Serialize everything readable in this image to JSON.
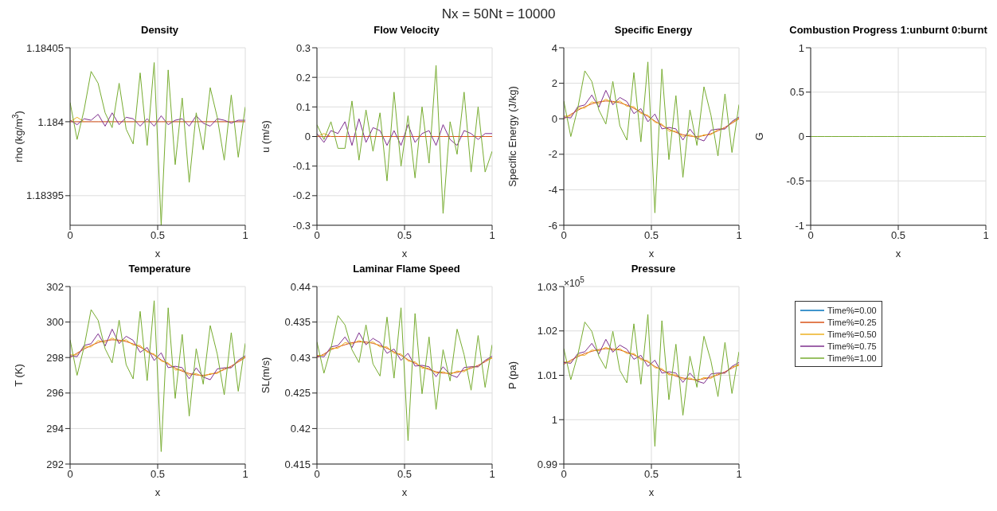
{
  "chart_data": [
    {
      "type": "line",
      "title": "Density",
      "xlabel": "x",
      "ylabel": "rho (kg/m$^{3}$)",
      "annotations": [
        "Nx = 50Nt = 10000"
      ],
      "x": [
        0,
        0.04,
        0.08,
        0.12,
        0.16,
        0.2,
        0.24,
        0.28,
        0.32,
        0.36,
        0.4,
        0.44,
        0.48,
        0.52,
        0.56,
        0.6,
        0.64,
        0.68,
        0.72,
        0.76,
        0.8,
        0.84,
        0.88,
        0.92,
        0.96,
        1
      ],
      "xlim": [
        0,
        1
      ],
      "xticks": [
        0,
        0.5,
        1
      ],
      "ylim": [
        1.18393,
        1.18405
      ],
      "yticks": [
        1.18395,
        1.184,
        1.18405
      ],
      "grid": true,
      "marker": "none",
      "line_style": "solid",
      "series": [
        {
          "color": "#0072bd",
          "values": [
            null,
            null,
            null,
            null,
            null,
            null,
            null,
            null,
            null,
            null,
            null,
            null,
            null,
            null,
            null,
            null,
            null,
            null,
            null,
            null,
            null,
            null,
            null,
            null,
            null,
            null
          ]
        },
        {
          "color": "#d95319",
          "values": [
            1.184,
            1.184,
            1.184,
            1.184,
            1.184,
            1.184,
            1.184,
            1.184,
            1.184,
            1.184,
            1.184,
            1.184,
            1.184,
            1.184,
            1.184,
            1.184,
            1.184,
            1.184,
            1.184,
            1.184,
            1.184,
            1.184,
            1.184,
            1.184,
            1.184,
            1.184
          ]
        },
        {
          "color": "#edb120",
          "values": [
            1.184,
            1.184003,
            1.184,
            null,
            null,
            null,
            null,
            null,
            null,
            null,
            null,
            null,
            null,
            null,
            null,
            null,
            null,
            null,
            null,
            null,
            null,
            null,
            null,
            null,
            null,
            null
          ]
        },
        {
          "color": "#7e2f8e",
          "values": [
            1.184001,
            1.183998,
            1.184002,
            1.184001,
            1.184005,
            1.183997,
            1.184006,
            1.183998,
            1.184003,
            1.184002,
            1.183997,
            1.184002,
            1.183997,
            1.184004,
            1.183998,
            1.184001,
            1.184002,
            1.183997,
            1.184004,
            1.183999,
            1.183997,
            1.184002,
            1.184001,
            1.183999,
            1.184001,
            1.184001
          ]
        },
        {
          "color": "#77ac30",
          "values": [
            1.184013,
            1.183988,
            1.184008,
            1.184034,
            1.184026,
            1.184006,
            1.183996,
            1.184026,
            1.183995,
            1.183985,
            1.184033,
            1.183984,
            1.18404,
            1.18393,
            1.184035,
            1.183971,
            1.184016,
            1.183959,
            1.184006,
            1.183981,
            1.184023,
            1.184003,
            1.183974,
            1.184018,
            1.183976,
            1.18401
          ]
        }
      ]
    },
    {
      "type": "line",
      "title": "Flow Velocity",
      "xlabel": "x",
      "ylabel": "u (m/s)",
      "x": [
        0,
        0.04,
        0.08,
        0.12,
        0.16,
        0.2,
        0.24,
        0.28,
        0.32,
        0.36,
        0.4,
        0.44,
        0.48,
        0.52,
        0.56,
        0.6,
        0.64,
        0.68,
        0.72,
        0.76,
        0.8,
        0.84,
        0.88,
        0.92,
        0.96,
        1
      ],
      "xlim": [
        0,
        1
      ],
      "xticks": [
        0,
        0.5,
        1
      ],
      "ylim": [
        -0.3,
        0.3
      ],
      "yticks": [
        -0.3,
        -0.2,
        -0.1,
        0,
        0.1,
        0.2,
        0.3
      ],
      "grid": true,
      "marker": "none",
      "line_style": "solid",
      "series": [
        {
          "color": "#0072bd",
          "values": [
            null,
            null,
            null,
            null,
            null,
            null,
            null,
            null,
            null,
            null,
            null,
            null,
            null,
            null,
            null,
            null,
            null,
            null,
            null,
            null,
            null,
            null,
            null,
            null,
            null,
            null
          ]
        },
        {
          "color": "#d95319",
          "values": [
            0,
            0,
            0,
            0,
            0,
            0,
            0,
            0,
            0,
            0,
            0,
            0,
            0,
            0,
            0,
            0,
            0,
            0,
            0,
            0,
            0,
            0,
            0,
            0,
            0,
            0
          ]
        },
        {
          "color": "#edb120",
          "values": [
            0,
            0.01,
            0,
            null,
            null,
            null,
            null,
            null,
            null,
            null,
            null,
            null,
            null,
            null,
            null,
            null,
            null,
            null,
            null,
            null,
            null,
            null,
            null,
            null,
            null,
            null
          ]
        },
        {
          "color": "#7e2f8e",
          "values": [
            0.01,
            -0.02,
            0.02,
            0.01,
            0.05,
            -0.03,
            0.06,
            -0.02,
            0.03,
            0.02,
            -0.03,
            0.02,
            -0.03,
            0.04,
            -0.02,
            0.01,
            0.02,
            -0.03,
            0.04,
            -0.01,
            -0.03,
            0.02,
            0.01,
            -0.01,
            0.01,
            0.01
          ]
        },
        {
          "color": "#77ac30",
          "values": [
            0.04,
            -0.01,
            0.05,
            -0.04,
            -0.04,
            0.12,
            -0.08,
            0.09,
            -0.05,
            0.08,
            -0.15,
            0.15,
            -0.1,
            0.07,
            -0.14,
            0.1,
            -0.09,
            0.24,
            -0.26,
            0.05,
            -0.06,
            0.15,
            -0.12,
            0.1,
            -0.12,
            -0.05
          ]
        }
      ]
    },
    {
      "type": "line",
      "title": "Specific Energy",
      "xlabel": "x",
      "ylabel": "Specific Energy (J/kg)",
      "x": [
        0,
        0.04,
        0.08,
        0.12,
        0.16,
        0.2,
        0.24,
        0.28,
        0.32,
        0.36,
        0.4,
        0.44,
        0.48,
        0.52,
        0.56,
        0.6,
        0.64,
        0.68,
        0.72,
        0.76,
        0.8,
        0.84,
        0.88,
        0.92,
        0.96,
        1
      ],
      "xlim": [
        0,
        1
      ],
      "xticks": [
        0,
        0.5,
        1
      ],
      "ylim": [
        -6,
        4
      ],
      "yticks": [
        -6,
        -4,
        -2,
        0,
        2,
        4
      ],
      "grid": true,
      "marker": "none",
      "line_style": "solid",
      "series": [
        {
          "color": "#0072bd",
          "values": [
            null,
            null,
            null,
            null,
            null,
            null,
            null,
            null,
            null,
            null,
            null,
            null,
            null,
            null,
            null,
            null,
            null,
            null,
            null,
            null,
            null,
            null,
            null,
            null,
            null,
            null
          ]
        },
        {
          "color": "#d95319",
          "values": [
            0,
            0.25,
            0.48,
            0.68,
            0.84,
            0.95,
            1,
            0.98,
            0.9,
            0.77,
            0.59,
            0.37,
            0.13,
            -0.13,
            -0.37,
            -0.59,
            -0.77,
            -0.9,
            -0.98,
            -1,
            -0.95,
            -0.84,
            -0.68,
            -0.48,
            -0.25,
            0
          ]
        },
        {
          "color": "#edb120",
          "values": [
            0.15,
            0.15,
            0.6,
            0.6,
            0.95,
            0.85,
            1.1,
            0.9,
            1,
            0.7,
            0.68,
            0.3,
            0.2,
            -0.2,
            -0.3,
            -0.7,
            -0.7,
            -1,
            -0.9,
            -1.1,
            -0.9,
            -0.9,
            -0.6,
            -0.55,
            -0.2,
            0.05
          ]
        },
        {
          "color": "#7e2f8e",
          "values": [
            0.1,
            0.05,
            0.68,
            0.78,
            1.34,
            0.65,
            1.6,
            0.78,
            1.2,
            0.97,
            0.29,
            0.57,
            -0.17,
            0.27,
            -0.57,
            -0.49,
            -0.57,
            -1.2,
            -0.58,
            -1.1,
            -1.25,
            -0.64,
            -0.58,
            -0.58,
            -0.15,
            0.1
          ]
        },
        {
          "color": "#77ac30",
          "values": [
            1,
            -1,
            0.6,
            2.7,
            2.1,
            0.5,
            -0.3,
            2.1,
            -0.4,
            -1.2,
            2.6,
            -1.3,
            3.2,
            -5.3,
            2.8,
            -2.3,
            1.3,
            -3.3,
            0.5,
            -1.5,
            1.8,
            0.2,
            -2.1,
            1.4,
            -1.9,
            0.8
          ]
        }
      ]
    },
    {
      "type": "line",
      "title": "Combustion Progress 1:unburnt 0:burnt",
      "xlabel": "x",
      "ylabel": "G",
      "x": [
        0,
        0.04,
        0.08,
        0.12,
        0.16,
        0.2,
        0.24,
        0.28,
        0.32,
        0.36,
        0.4,
        0.44,
        0.48,
        0.52,
        0.56,
        0.6,
        0.64,
        0.68,
        0.72,
        0.76,
        0.8,
        0.84,
        0.88,
        0.92,
        0.96,
        1
      ],
      "xlim": [
        0,
        1
      ],
      "xticks": [
        0,
        0.5,
        1
      ],
      "ylim": [
        -1,
        1
      ],
      "yticks": [
        -1,
        -0.5,
        0,
        0.5,
        1
      ],
      "grid": true,
      "marker": "none",
      "line_style": "solid",
      "series": [
        {
          "color": "#0072bd",
          "values": [
            null,
            null,
            null,
            null,
            null,
            null,
            null,
            null,
            null,
            null,
            null,
            null,
            null,
            null,
            null,
            null,
            null,
            null,
            null,
            null,
            null,
            null,
            null,
            null,
            null,
            null
          ]
        },
        {
          "color": "#d95319",
          "values": [
            null,
            null,
            null,
            null,
            null,
            null,
            null,
            null,
            null,
            null,
            null,
            null,
            null,
            null,
            null,
            null,
            null,
            null,
            null,
            null,
            null,
            null,
            null,
            null,
            null,
            null
          ]
        },
        {
          "color": "#edb120",
          "values": [
            null,
            null,
            null,
            null,
            null,
            null,
            null,
            null,
            null,
            null,
            null,
            null,
            null,
            null,
            null,
            null,
            null,
            null,
            null,
            null,
            null,
            null,
            null,
            null,
            null,
            null
          ]
        },
        {
          "color": "#7e2f8e",
          "values": [
            null,
            null,
            null,
            null,
            null,
            null,
            null,
            null,
            null,
            null,
            null,
            null,
            null,
            null,
            null,
            null,
            null,
            null,
            null,
            null,
            null,
            null,
            null,
            null,
            null,
            null
          ]
        },
        {
          "color": "#77ac30",
          "values": [
            0,
            0,
            0,
            0,
            0,
            0,
            0,
            0,
            0,
            0,
            0,
            0,
            0,
            0,
            0,
            0,
            0,
            0,
            0,
            0,
            0,
            0,
            0,
            0,
            0,
            0
          ]
        }
      ]
    },
    {
      "type": "line",
      "title": "Temperature",
      "xlabel": "x",
      "ylabel": "T (K)",
      "x": [
        0,
        0.04,
        0.08,
        0.12,
        0.16,
        0.2,
        0.24,
        0.28,
        0.32,
        0.36,
        0.4,
        0.44,
        0.48,
        0.52,
        0.56,
        0.6,
        0.64,
        0.68,
        0.72,
        0.76,
        0.8,
        0.84,
        0.88,
        0.92,
        0.96,
        1
      ],
      "xlim": [
        0,
        1
      ],
      "xticks": [
        0,
        0.5,
        1
      ],
      "ylim": [
        292,
        302
      ],
      "yticks": [
        292,
        294,
        296,
        298,
        300,
        302
      ],
      "grid": true,
      "marker": "none",
      "line_style": "solid",
      "series": [
        {
          "color": "#0072bd",
          "values": [
            null,
            null,
            null,
            null,
            null,
            null,
            null,
            null,
            null,
            null,
            null,
            null,
            null,
            null,
            null,
            null,
            null,
            null,
            null,
            null,
            null,
            null,
            null,
            null,
            null,
            null
          ]
        },
        {
          "color": "#d95319",
          "values": [
            298,
            298.25,
            298.48,
            298.68,
            298.84,
            298.95,
            299,
            298.98,
            298.9,
            298.77,
            298.59,
            298.37,
            298.13,
            297.87,
            297.63,
            297.41,
            297.23,
            297.1,
            297.02,
            297,
            297.05,
            297.16,
            297.32,
            297.52,
            297.75,
            298
          ]
        },
        {
          "color": "#edb120",
          "values": [
            298.15,
            298.15,
            298.6,
            298.6,
            298.95,
            298.85,
            299.1,
            298.9,
            299,
            298.7,
            298.68,
            298.3,
            298.2,
            297.8,
            297.7,
            297.3,
            297.3,
            297,
            297.1,
            296.9,
            297.1,
            297.1,
            297.4,
            297.45,
            297.8,
            298.05
          ]
        },
        {
          "color": "#7e2f8e",
          "values": [
            298.1,
            298.05,
            298.68,
            298.78,
            299.34,
            298.65,
            299.6,
            298.78,
            299.2,
            298.97,
            298.29,
            298.57,
            297.83,
            298.27,
            297.43,
            297.51,
            297.43,
            296.8,
            297.42,
            296.9,
            296.75,
            297.36,
            297.42,
            297.42,
            297.85,
            298.1
          ]
        },
        {
          "color": "#77ac30",
          "values": [
            299,
            297,
            298.6,
            300.7,
            300.1,
            298.5,
            297.7,
            300.1,
            297.6,
            296.8,
            300.6,
            296.7,
            301.2,
            292.7,
            300.8,
            295.7,
            299.3,
            294.7,
            298.5,
            296.5,
            299.8,
            298.2,
            295.9,
            299.4,
            296.1,
            298.8
          ]
        }
      ]
    },
    {
      "type": "line",
      "title": "Laminar Flame Speed",
      "xlabel": "x",
      "ylabel": "SL(m/s)",
      "x": [
        0,
        0.04,
        0.08,
        0.12,
        0.16,
        0.2,
        0.24,
        0.28,
        0.32,
        0.36,
        0.4,
        0.44,
        0.48,
        0.52,
        0.56,
        0.6,
        0.64,
        0.68,
        0.72,
        0.76,
        0.8,
        0.84,
        0.88,
        0.92,
        0.96,
        1
      ],
      "xlim": [
        0,
        1
      ],
      "xticks": [
        0,
        0.5,
        1
      ],
      "ylim": [
        0.415,
        0.44
      ],
      "yticks": [
        0.415,
        0.42,
        0.425,
        0.43,
        0.435,
        0.44
      ],
      "grid": true,
      "marker": "none",
      "line_style": "solid",
      "series": [
        {
          "color": "#0072bd",
          "values": [
            null,
            null,
            null,
            null,
            null,
            null,
            null,
            null,
            null,
            null,
            null,
            null,
            null,
            null,
            null,
            null,
            null,
            null,
            null,
            null,
            null,
            null,
            null,
            null,
            null,
            null
          ]
        },
        {
          "color": "#d95319",
          "values": [
            0.43,
            0.4305,
            0.4311,
            0.4315,
            0.4318,
            0.4321,
            0.4322,
            0.4322,
            0.432,
            0.4317,
            0.4313,
            0.4308,
            0.4303,
            0.4297,
            0.4292,
            0.4287,
            0.4283,
            0.428,
            0.4278,
            0.4278,
            0.4279,
            0.4282,
            0.4285,
            0.4289,
            0.4294,
            0.43
          ]
        },
        {
          "color": "#edb120",
          "values": [
            0.4303,
            0.4303,
            0.4313,
            0.4313,
            0.4321,
            0.4319,
            0.4324,
            0.432,
            0.4322,
            0.4315,
            0.4315,
            0.4306,
            0.4305,
            0.4295,
            0.4294,
            0.4285,
            0.4285,
            0.4278,
            0.428,
            0.4276,
            0.4281,
            0.428,
            0.4287,
            0.4287,
            0.4296,
            0.4299
          ]
        },
        {
          "color": "#7e2f8e",
          "values": [
            0.4302,
            0.4301,
            0.4315,
            0.4317,
            0.4329,
            0.4314,
            0.4335,
            0.4318,
            0.4327,
            0.4321,
            0.4306,
            0.4312,
            0.4296,
            0.4306,
            0.4288,
            0.4289,
            0.4287,
            0.4273,
            0.4287,
            0.4276,
            0.4272,
            0.4286,
            0.4287,
            0.4287,
            0.4296,
            0.4302
          ]
        },
        {
          "color": "#77ac30",
          "values": [
            0.4322,
            0.4278,
            0.4313,
            0.4359,
            0.4346,
            0.4311,
            0.4293,
            0.4346,
            0.4291,
            0.4274,
            0.4357,
            0.4271,
            0.437,
            0.4183,
            0.4362,
            0.4249,
            0.4329,
            0.4227,
            0.4311,
            0.4267,
            0.434,
            0.4304,
            0.4254,
            0.4331,
            0.4258,
            0.4318
          ]
        }
      ]
    },
    {
      "type": "line",
      "title": "Pressure",
      "xlabel": "x",
      "ylabel": "P (pa)",
      "annotations": [
        "×10$^{5}$"
      ],
      "legend": "right",
      "x": [
        0,
        0.04,
        0.08,
        0.12,
        0.16,
        0.2,
        0.24,
        0.28,
        0.32,
        0.36,
        0.4,
        0.44,
        0.48,
        0.52,
        0.56,
        0.6,
        0.64,
        0.68,
        0.72,
        0.76,
        0.8,
        0.84,
        0.88,
        0.92,
        0.96,
        1
      ],
      "xlim": [
        0,
        1
      ],
      "xticks": [
        0,
        0.5,
        1
      ],
      "ylim": [
        0.99,
        1.03
      ],
      "yticks": [
        0.99,
        1,
        1.01,
        1.02,
        1.03
      ],
      "grid": true,
      "marker": "none",
      "line_style": "solid",
      "series": [
        {
          "name": "Time%=0.00",
          "color": "#0072bd",
          "values": [
            null,
            null,
            null,
            null,
            null,
            null,
            null,
            null,
            null,
            null,
            null,
            null,
            null,
            null,
            null,
            null,
            null,
            null,
            null,
            null,
            null,
            null,
            null,
            null,
            null,
            null
          ]
        },
        {
          "name": "Time%=0.25",
          "color": "#d95319",
          "values": [
            1.0125,
            1.0134,
            1.0142,
            1.0149,
            1.0154,
            1.0158,
            1.016,
            1.0159,
            1.0157,
            1.0152,
            1.0146,
            1.0138,
            1.013,
            1.012,
            1.0112,
            1.0104,
            1.0098,
            1.0094,
            1.0091,
            1.009,
            1.0092,
            1.0096,
            1.0101,
            1.0108,
            1.0116,
            1.0125
          ]
        },
        {
          "name": "Time%=0.50",
          "color": "#edb120",
          "values": [
            1.013,
            1.013,
            1.0146,
            1.0145,
            1.0157,
            1.0155,
            1.0163,
            1.0156,
            1.016,
            1.0149,
            1.0149,
            1.0135,
            1.0133,
            1.0117,
            1.0115,
            1.0101,
            1.0101,
            1.0091,
            1.0094,
            1.0087,
            1.0095,
            1.0093,
            1.0104,
            1.0105,
            1.0119,
            1.0122
          ]
        },
        {
          "name": "Time%=0.75",
          "color": "#7e2f8e",
          "values": [
            1.0129,
            1.0127,
            1.0149,
            1.0153,
            1.0172,
            1.0148,
            1.0181,
            1.0152,
            1.0168,
            1.0159,
            1.0136,
            1.0145,
            1.012,
            1.0134,
            1.0105,
            1.0108,
            1.0105,
            1.0084,
            1.0105,
            1.0087,
            1.0082,
            1.0103,
            1.0105,
            1.0105,
            1.012,
            1.0129
          ]
        },
        {
          "name": "Time%=1.00",
          "color": "#77ac30",
          "values": [
            1.016,
            1.009,
            1.0146,
            1.022,
            1.0199,
            1.0143,
            1.0115,
            1.0199,
            1.0111,
            1.0083,
            1.0216,
            1.008,
            1.0237,
            0.994,
            1.0223,
            1.0045,
            1.017,
            1.001,
            1.0143,
            1.0073,
            1.0188,
            1.0132,
            1.0052,
            1.0174,
            1.0059,
            1.0153
          ]
        }
      ]
    }
  ]
}
